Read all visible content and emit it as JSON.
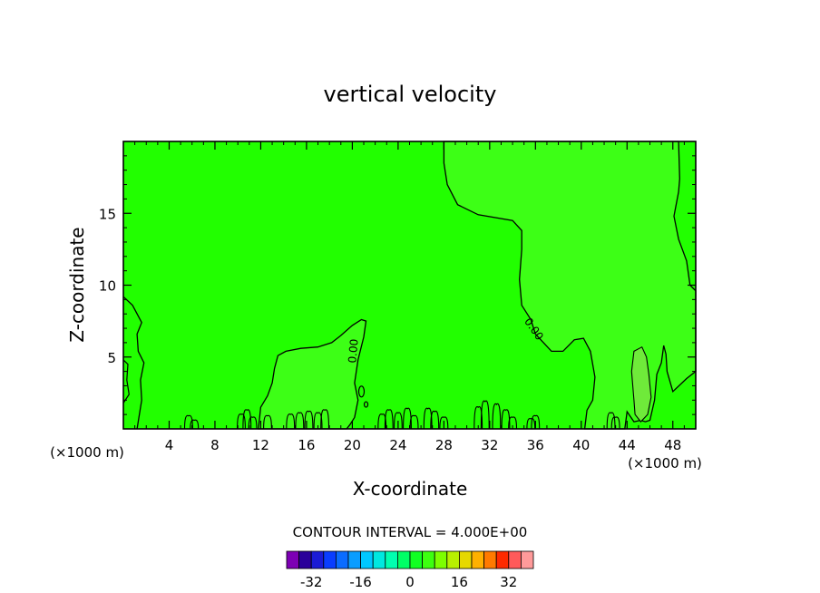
{
  "chart_data": {
    "type": "heatmap",
    "title": "vertical velocity",
    "xlabel": "X-coordinate",
    "ylabel": "Z-coordinate",
    "x_unit_left": "(×1000 m)",
    "x_unit_right": "(×1000 m)",
    "xlim": [
      0,
      50
    ],
    "ylim": [
      0,
      20
    ],
    "x_ticks": [
      4,
      8,
      12,
      16,
      20,
      24,
      28,
      32,
      36,
      40,
      44,
      48
    ],
    "y_ticks": [
      5,
      10,
      15
    ],
    "contour_interval_label": "CONTOUR INTERVAL = 4.000E+00",
    "contour_labels": [
      "0.00",
      "0.00"
    ],
    "regions": [
      {
        "name": "near-zero",
        "value": 0,
        "color": "#22ff00"
      },
      {
        "name": "weak-updraft-upper-right",
        "value": 2,
        "color": "#3dff16"
      },
      {
        "name": "weak-updraft-lower-mid",
        "value": 2,
        "color": "#3dff16"
      },
      {
        "name": "updraft-44km",
        "value": 4,
        "color": "#6fea3a"
      }
    ],
    "colorbar": {
      "levels": [
        -36,
        -32,
        -28,
        -24,
        -20,
        -16,
        -12,
        -8,
        -4,
        0,
        4,
        8,
        12,
        16,
        20,
        24,
        28,
        32,
        36
      ],
      "colors": [
        "#7d00b4",
        "#2a009a",
        "#1b1bd6",
        "#0a3dff",
        "#0a6cff",
        "#0a9dff",
        "#00c8ff",
        "#00e8e0",
        "#00ffb0",
        "#00ff66",
        "#11ff22",
        "#3dff10",
        "#7dff00",
        "#b8f000",
        "#e6d800",
        "#ffb000",
        "#ff7a00",
        "#ff2a00",
        "#ff5a5a",
        "#ff9a9a"
      ],
      "tick_labels": [
        "-32",
        "-16",
        "0",
        "16",
        "32"
      ],
      "tick_values": [
        -32,
        -16,
        0,
        16,
        32
      ]
    }
  }
}
